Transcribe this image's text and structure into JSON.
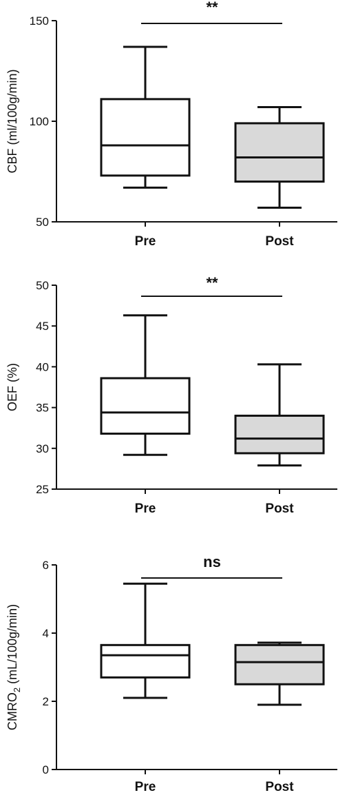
{
  "chart_data": [
    {
      "type": "box",
      "ylabel": "CBF (ml/100g/min)",
      "ylim": [
        50,
        150
      ],
      "yticks": [
        50,
        100,
        150
      ],
      "categories": [
        "Pre",
        "Post"
      ],
      "boxes": [
        {
          "category": "Pre",
          "min": 67,
          "q1": 73,
          "median": 88,
          "q3": 111,
          "max": 137,
          "fill": "#ffffff"
        },
        {
          "category": "Post",
          "min": 57,
          "q1": 70,
          "median": 82,
          "q3": 99,
          "max": 107,
          "fill": "#d9d9d9"
        }
      ],
      "significance": "**"
    },
    {
      "type": "box",
      "ylabel": "OEF (%)",
      "ylim": [
        25,
        50
      ],
      "yticks": [
        25,
        30,
        35,
        40,
        45,
        50
      ],
      "categories": [
        "Pre",
        "Post"
      ],
      "boxes": [
        {
          "category": "Pre",
          "min": 29.2,
          "q1": 31.8,
          "median": 34.4,
          "q3": 38.6,
          "max": 46.3,
          "fill": "#ffffff"
        },
        {
          "category": "Post",
          "min": 27.9,
          "q1": 29.4,
          "median": 31.2,
          "q3": 34.0,
          "max": 40.3,
          "fill": "#d9d9d9"
        }
      ],
      "significance": "**"
    },
    {
      "type": "box",
      "ylabel_main": "CMRO",
      "ylabel_sub": "2",
      "ylabel_rest": " (mL/100g/min)",
      "ylim": [
        0,
        6
      ],
      "yticks": [
        0,
        2,
        4,
        6
      ],
      "categories": [
        "Pre",
        "Post"
      ],
      "boxes": [
        {
          "category": "Pre",
          "min": 2.1,
          "q1": 2.7,
          "median": 3.35,
          "q3": 3.65,
          "max": 5.45,
          "fill": "#ffffff"
        },
        {
          "category": "Post",
          "min": 1.9,
          "q1": 2.5,
          "median": 3.15,
          "q3": 3.65,
          "max": 3.72,
          "fill": "#d9d9d9"
        }
      ],
      "significance": "ns"
    }
  ],
  "colors": {
    "axis": "#111111",
    "post_fill": "#d9d9d9",
    "pre_fill": "#ffffff"
  }
}
